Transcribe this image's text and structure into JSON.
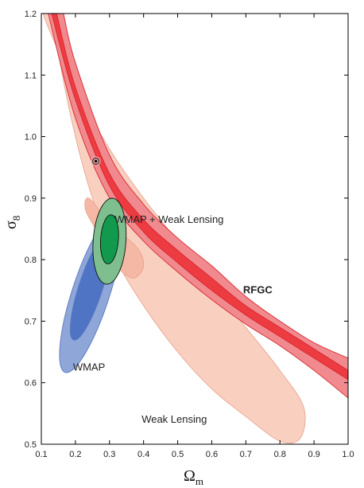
{
  "chart_data": {
    "type": "contour",
    "title": "",
    "xlabel": {
      "symbol": "Ω",
      "subscript": "m"
    },
    "ylabel": {
      "symbol": "σ",
      "subscript": "8"
    },
    "xlim": [
      0.1,
      1.0
    ],
    "ylim": [
      0.5,
      1.2
    ],
    "xticks": [
      "0.1",
      "0.2",
      "0.3",
      "0.4",
      "0.5",
      "0.6",
      "0.7",
      "0.8",
      "0.9",
      "1.0"
    ],
    "yticks": [
      "0.5",
      "0.6",
      "0.7",
      "0.8",
      "0.9",
      "1.0",
      "1.1",
      "1.2"
    ],
    "grid": false,
    "colors": {
      "weak_lensing_outer": "#f9cfc0",
      "weak_lensing_inner": "#f5b8a4",
      "rfgc_outer": "#f08a8f",
      "rfgc_inner": "#ec3b41",
      "wmap_outer": "#8fa6d9",
      "wmap_inner": "#4f74c4",
      "combined_outer": "#7fbf8f",
      "combined_inner": "#119a4e"
    },
    "annotations": [
      {
        "label": "WMAP + Weak Lensing",
        "x": 0.475,
        "y": 0.86
      },
      {
        "label": "RFGC",
        "x": 0.735,
        "y": 0.745
      },
      {
        "label": "WMAP",
        "x": 0.24,
        "y": 0.62
      },
      {
        "label": "Weak Lensing",
        "x": 0.49,
        "y": 0.535
      }
    ],
    "series": [
      {
        "name": "RFGC",
        "bands": [
          {
            "level": "outer",
            "lower": [
              [
                0.12,
                1.2
              ],
              [
                0.2,
                1.03
              ],
              [
                0.3,
                0.9
              ],
              [
                0.4,
                0.83
              ],
              [
                0.5,
                0.78
              ],
              [
                0.6,
                0.735
              ],
              [
                0.7,
                0.695
              ],
              [
                0.8,
                0.66
              ],
              [
                0.9,
                0.62
              ],
              [
                1.0,
                0.575
              ]
            ],
            "upper": [
              [
                0.165,
                1.2
              ],
              [
                0.2,
                1.12
              ],
              [
                0.3,
                0.97
              ],
              [
                0.4,
                0.89
              ],
              [
                0.5,
                0.835
              ],
              [
                0.6,
                0.79
              ],
              [
                0.7,
                0.74
              ],
              [
                0.8,
                0.7
              ],
              [
                0.9,
                0.665
              ],
              [
                1.0,
                0.64
              ]
            ]
          },
          {
            "level": "inner",
            "lower": [
              [
                0.13,
                1.2
              ],
              [
                0.2,
                1.06
              ],
              [
                0.3,
                0.92
              ],
              [
                0.4,
                0.845
              ],
              [
                0.5,
                0.795
              ],
              [
                0.6,
                0.75
              ],
              [
                0.7,
                0.71
              ],
              [
                0.8,
                0.675
              ],
              [
                0.9,
                0.64
              ],
              [
                1.0,
                0.605
              ]
            ],
            "upper": [
              [
                0.145,
                1.2
              ],
              [
                0.2,
                1.08
              ],
              [
                0.3,
                0.94
              ],
              [
                0.4,
                0.865
              ],
              [
                0.5,
                0.815
              ],
              [
                0.6,
                0.77
              ],
              [
                0.7,
                0.725
              ],
              [
                0.8,
                0.69
              ],
              [
                0.9,
                0.655
              ],
              [
                1.0,
                0.62
              ]
            ]
          }
        ],
        "point": {
          "x": 0.26,
          "y": 0.96
        }
      },
      {
        "name": "Weak Lensing",
        "contours": [
          {
            "level": "outer",
            "points": [
              [
                0.105,
                1.2
              ],
              [
                0.2,
                1.08
              ],
              [
                0.3,
                0.98
              ],
              [
                0.4,
                0.9
              ],
              [
                0.5,
                0.83
              ],
              [
                0.6,
                0.76
              ],
              [
                0.7,
                0.69
              ],
              [
                0.8,
                0.62
              ],
              [
                0.87,
                0.56
              ],
              [
                0.86,
                0.51
              ],
              [
                0.8,
                0.505
              ],
              [
                0.7,
                0.545
              ],
              [
                0.6,
                0.59
              ],
              [
                0.5,
                0.65
              ],
              [
                0.4,
                0.725
              ],
              [
                0.32,
                0.8
              ],
              [
                0.25,
                0.9
              ],
              [
                0.2,
                1.0
              ],
              [
                0.155,
                1.12
              ],
              [
                0.135,
                1.2
              ]
            ]
          },
          {
            "level": "inner",
            "points": [
              [
                0.24,
                0.9
              ],
              [
                0.3,
                0.86
              ],
              [
                0.38,
                0.82
              ],
              [
                0.4,
                0.79
              ],
              [
                0.37,
                0.77
              ],
              [
                0.32,
                0.79
              ],
              [
                0.27,
                0.84
              ],
              [
                0.23,
                0.88
              ]
            ]
          }
        ]
      },
      {
        "name": "WMAP",
        "ellipses": [
          {
            "level": "outer",
            "cx": 0.245,
            "cy": 0.745,
            "rx": 0.055,
            "ry": 0.135,
            "rot_deg": 18
          },
          {
            "level": "inner",
            "cx": 0.245,
            "cy": 0.755,
            "rx": 0.035,
            "ry": 0.09,
            "rot_deg": 18
          }
        ]
      },
      {
        "name": "WMAP + Weak Lensing",
        "ellipses": [
          {
            "level": "outer",
            "cx": 0.3,
            "cy": 0.83,
            "rx": 0.048,
            "ry": 0.07,
            "rot_deg": 4
          },
          {
            "level": "inner",
            "cx": 0.3,
            "cy": 0.833,
            "rx": 0.026,
            "ry": 0.04,
            "rot_deg": 4
          }
        ]
      }
    ]
  }
}
